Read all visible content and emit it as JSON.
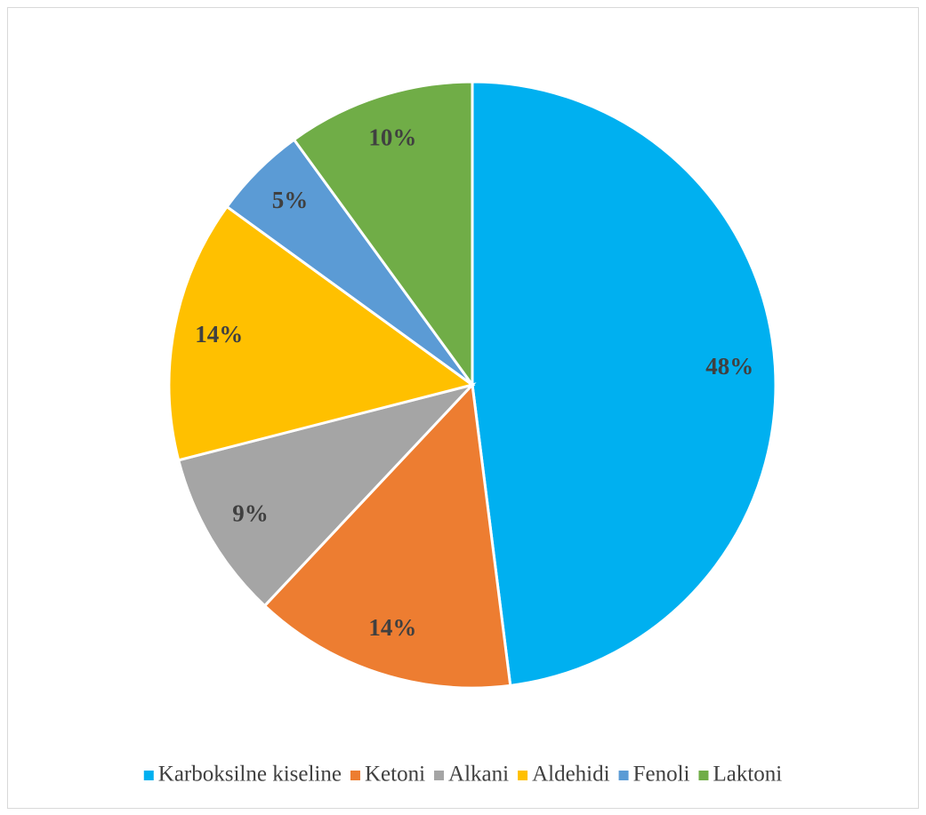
{
  "chart_data": {
    "type": "pie",
    "categories": [
      "Karboksilne kiseline",
      "Ketoni",
      "Alkani",
      "Aldehidi",
      "Fenoli",
      "Laktoni"
    ],
    "values": [
      48,
      14,
      9,
      14,
      5,
      10
    ],
    "value_labels": [
      "48%",
      "14%",
      "9%",
      "14%",
      "5%",
      "10%"
    ],
    "colors": [
      "#00b0f0",
      "#ed7d31",
      "#a5a5a5",
      "#ffc000",
      "#5b9bd5",
      "#70ad47"
    ],
    "legend": "bottom"
  }
}
